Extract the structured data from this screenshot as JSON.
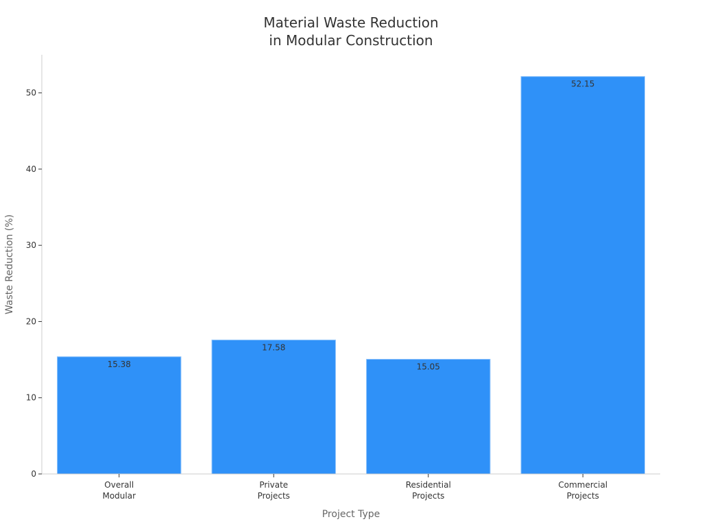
{
  "chart_data": {
    "type": "bar",
    "title": [
      "Material Waste Reduction",
      "in Modular Construction"
    ],
    "xlabel": "Project Type",
    "ylabel": "Waste Reduction (%)",
    "categories": [
      [
        "Overall",
        "Modular"
      ],
      [
        "Private",
        "Projects"
      ],
      [
        "Residential",
        "Projects"
      ],
      [
        "Commercial",
        "Projects"
      ]
    ],
    "values": [
      15.38,
      17.58,
      15.05,
      52.15
    ],
    "value_labels": [
      "15.38",
      "17.58",
      "15.05",
      "52.15"
    ],
    "ylim": [
      0,
      55
    ],
    "yticks": [
      0,
      10,
      20,
      30,
      40,
      50
    ],
    "grid": false,
    "legend": "none",
    "bar_color": "#2f91f8"
  }
}
